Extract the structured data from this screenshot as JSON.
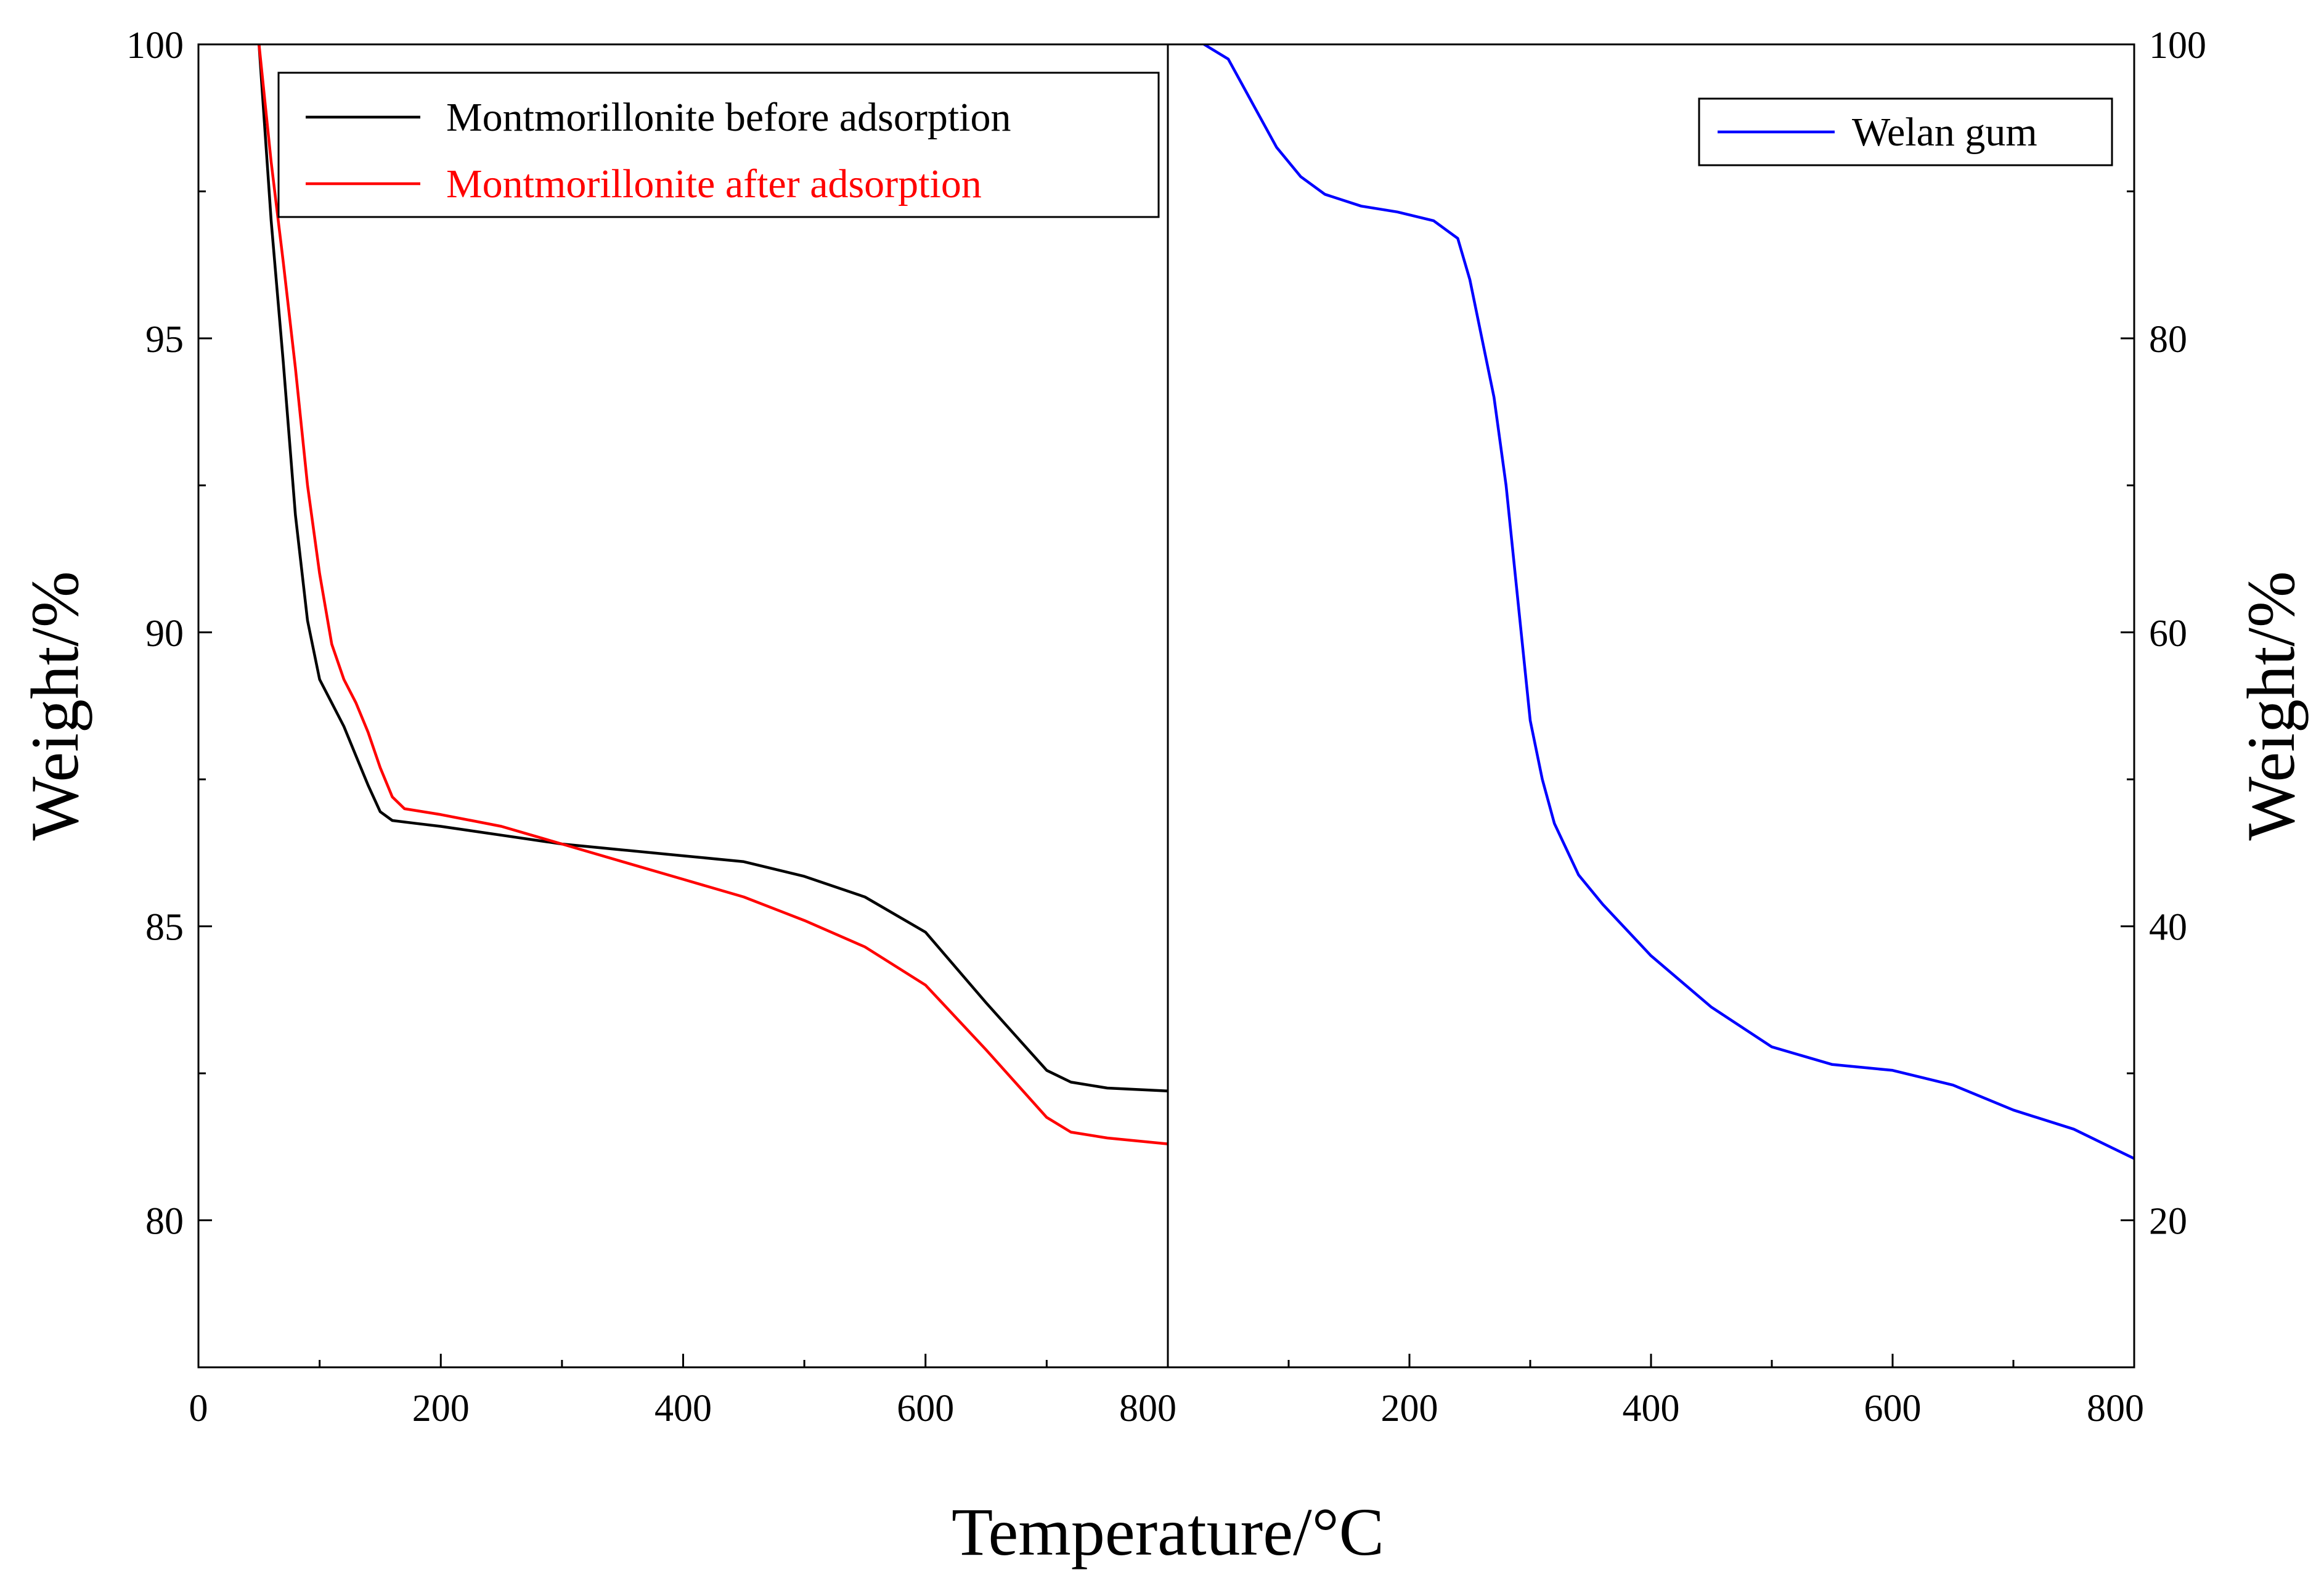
{
  "chart_data": [
    {
      "type": "line",
      "panel": "left",
      "xlabel": "",
      "ylabel": "Weight/%",
      "xlim": [
        0,
        800
      ],
      "ylim": [
        77.5,
        100
      ],
      "x_ticks": [
        0,
        200,
        400,
        600,
        800
      ],
      "x_tick_labels": [
        "0",
        "200",
        "400",
        "600",
        "800"
      ],
      "y_ticks": [
        80,
        85,
        90,
        95,
        100
      ],
      "y_tick_labels": [
        "80",
        "85",
        "90",
        "95",
        "100"
      ],
      "legend_position": "top-left",
      "series": [
        {
          "name": "Montmorillonite before adsorption",
          "color": "#000000",
          "x": [
            50,
            60,
            70,
            80,
            90,
            100,
            110,
            120,
            130,
            140,
            150,
            160,
            180,
            200,
            250,
            300,
            350,
            400,
            450,
            500,
            550,
            600,
            650,
            700,
            720,
            750,
            800
          ],
          "y": [
            100,
            97.0,
            94.6,
            92.0,
            90.2,
            89.2,
            88.8,
            88.4,
            87.9,
            87.4,
            86.95,
            86.8,
            86.75,
            86.7,
            86.55,
            86.4,
            86.3,
            86.2,
            86.1,
            85.85,
            85.5,
            84.9,
            83.7,
            82.55,
            82.35,
            82.25,
            82.2
          ]
        },
        {
          "name": "Montmorillonite after adsorption",
          "color": "#ff0000",
          "x": [
            50,
            60,
            70,
            80,
            90,
            100,
            110,
            120,
            130,
            140,
            150,
            160,
            170,
            200,
            250,
            300,
            350,
            400,
            450,
            500,
            550,
            600,
            650,
            700,
            720,
            750,
            800
          ],
          "y": [
            100,
            98.0,
            96.3,
            94.5,
            92.5,
            91.0,
            89.8,
            89.2,
            88.8,
            88.3,
            87.7,
            87.2,
            87.0,
            86.9,
            86.7,
            86.4,
            86.1,
            85.8,
            85.5,
            85.1,
            84.65,
            84.0,
            82.9,
            81.75,
            81.5,
            81.4,
            81.3
          ]
        }
      ]
    },
    {
      "type": "line",
      "panel": "right",
      "xlabel": "",
      "ylabel": "Weight/%",
      "xlim": [
        0,
        800
      ],
      "ylim": [
        10,
        100
      ],
      "x_ticks": [
        200,
        400,
        600,
        800
      ],
      "x_tick_labels": [
        "200",
        "400",
        "600",
        "800"
      ],
      "y_ticks": [
        20,
        40,
        60,
        80,
        100
      ],
      "y_tick_labels": [
        "20",
        "40",
        "60",
        "80",
        "100"
      ],
      "legend_position": "top-right",
      "series": [
        {
          "name": "Welan gum",
          "color": "#0000ff",
          "x": [
            30,
            50,
            70,
            90,
            110,
            130,
            160,
            190,
            220,
            240,
            250,
            260,
            270,
            280,
            290,
            300,
            310,
            320,
            340,
            360,
            400,
            450,
            500,
            550,
            600,
            650,
            700,
            750,
            800
          ],
          "y": [
            100,
            99.0,
            96.0,
            93.0,
            91.0,
            89.8,
            89.0,
            88.6,
            88.0,
            86.8,
            84.0,
            80.0,
            76.0,
            70.0,
            62.0,
            54.0,
            50.0,
            47.0,
            43.5,
            41.5,
            38.0,
            34.5,
            31.8,
            30.6,
            30.2,
            29.2,
            27.5,
            26.2,
            24.2
          ]
        }
      ]
    }
  ],
  "shared_xlabel": "Temperature/°C"
}
